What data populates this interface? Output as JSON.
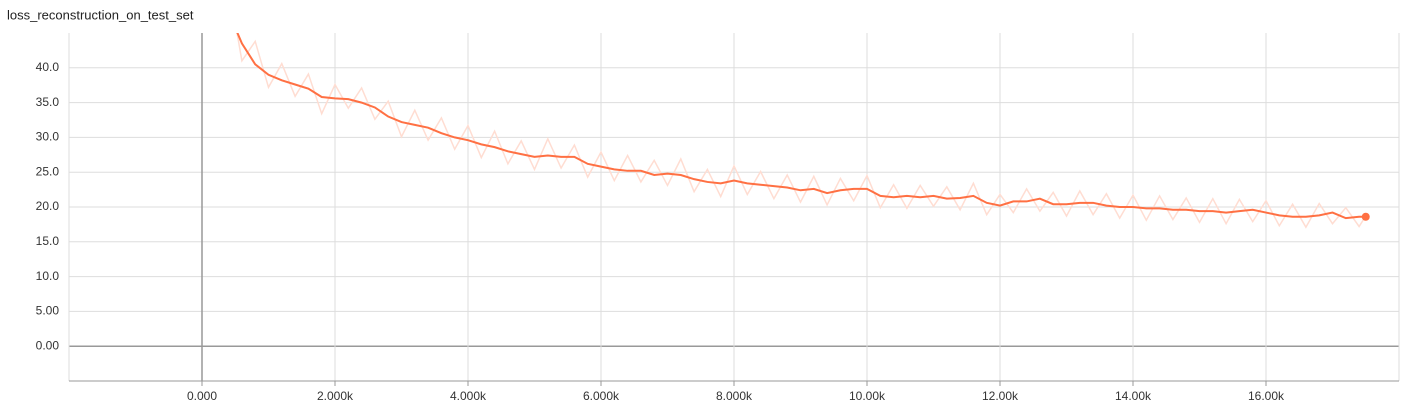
{
  "chart_data": {
    "type": "line",
    "title": "loss_reconstruction_on_test_set",
    "x": [
      400,
      600,
      800,
      1000,
      1200,
      1400,
      1600,
      1800,
      2000,
      2200,
      2400,
      2600,
      2800,
      3000,
      3200,
      3400,
      3600,
      3800,
      4000,
      4200,
      4400,
      4600,
      4800,
      5000,
      5200,
      5400,
      5600,
      5800,
      6000,
      6200,
      6400,
      6600,
      6800,
      7000,
      7200,
      7400,
      7600,
      7800,
      8000,
      8200,
      8400,
      8600,
      8800,
      9000,
      9200,
      9400,
      9600,
      9800,
      10000,
      10200,
      10400,
      10600,
      10800,
      11000,
      11200,
      11400,
      11600,
      11800,
      12000,
      12200,
      12400,
      12600,
      12800,
      13000,
      13200,
      13400,
      13600,
      13800,
      14000,
      14200,
      14400,
      14600,
      14800,
      15000,
      15200,
      15400,
      15600,
      15800,
      16000,
      16200,
      16400,
      16600,
      16800,
      17000,
      17200,
      17400,
      17500
    ],
    "series": [
      {
        "color": "#ffddd2",
        "values": [
          52,
          41,
          43.8,
          37.2,
          40.6,
          35.9,
          39.1,
          33.4,
          37.6,
          34.2,
          37.1,
          32.6,
          35.2,
          30.1,
          33.9,
          29.6,
          32.8,
          28.3,
          31.7,
          27.1,
          30.9,
          26.2,
          29.5,
          25.4,
          29.8,
          25.6,
          28.9,
          24.3,
          27.9,
          23.8,
          27.4,
          23.6,
          26.7,
          23.1,
          26.9,
          22.2,
          25.4,
          21.5,
          25.9,
          21.8,
          25.1,
          21.2,
          24.6,
          20.7,
          24.4,
          20.3,
          24.1,
          20.9,
          24.5,
          19.9,
          23.2,
          19.8,
          23.1,
          20.1,
          22.9,
          19.6,
          23.4,
          18.9,
          21.8,
          19.2,
          22.6,
          19.4,
          22.1,
          18.7,
          22.3,
          18.9,
          21.9,
          18.4,
          21.7,
          18.1,
          21.6,
          18.2,
          21.3,
          17.8,
          21.2,
          17.6,
          21.1,
          17.9,
          20.9,
          17.3,
          20.4,
          17.1,
          20.5,
          17.6,
          19.9,
          17.2,
          18.7
        ]
      },
      {
        "color": "#ff7043",
        "values": [
          48,
          43.5,
          40.5,
          39,
          38.2,
          37.6,
          37,
          35.8,
          35.6,
          35.5,
          35,
          34.3,
          33,
          32.2,
          31.8,
          31.4,
          30.6,
          30,
          29.6,
          29,
          28.6,
          28,
          27.6,
          27.2,
          27.4,
          27.2,
          27.2,
          26.2,
          25.8,
          25.4,
          25.2,
          25.2,
          24.6,
          24.8,
          24.6,
          24,
          23.6,
          23.4,
          23.8,
          23.4,
          23.2,
          23,
          22.8,
          22.4,
          22.6,
          22,
          22.4,
          22.6,
          22.6,
          21.6,
          21.4,
          21.6,
          21.4,
          21.6,
          21.2,
          21.3,
          21.6,
          20.6,
          20.2,
          20.8,
          20.8,
          21.2,
          20.4,
          20.4,
          20.6,
          20.6,
          20.2,
          20,
          20,
          19.8,
          19.8,
          19.6,
          19.6,
          19.4,
          19.4,
          19.2,
          19.4,
          19.6,
          19.2,
          18.8,
          18.6,
          18.6,
          18.8,
          19.2,
          18.4,
          18.6,
          18.6
        ]
      }
    ],
    "xlim": [
      -2000,
      18000
    ],
    "ylim": [
      -5,
      45
    ],
    "xticks": [
      {
        "value": 0,
        "label": "0.000"
      },
      {
        "value": 2000,
        "label": "2.000k"
      },
      {
        "value": 4000,
        "label": "4.000k"
      },
      {
        "value": 6000,
        "label": "6.000k"
      },
      {
        "value": 8000,
        "label": "8.000k"
      },
      {
        "value": 10000,
        "label": "10.00k"
      },
      {
        "value": 12000,
        "label": "12.00k"
      },
      {
        "value": 14000,
        "label": "14.00k"
      },
      {
        "value": 16000,
        "label": "16.00k"
      }
    ],
    "yticks": [
      {
        "value": 0,
        "label": "0.00"
      },
      {
        "value": 5,
        "label": "5.00"
      },
      {
        "value": 10,
        "label": "10.0"
      },
      {
        "value": 15,
        "label": "15.0"
      },
      {
        "value": 20,
        "label": "20.0"
      },
      {
        "value": 25,
        "label": "25.0"
      },
      {
        "value": 30,
        "label": "30.0"
      },
      {
        "value": 35,
        "label": "35.0"
      },
      {
        "value": 40,
        "label": "40.0"
      }
    ],
    "grid": true
  }
}
